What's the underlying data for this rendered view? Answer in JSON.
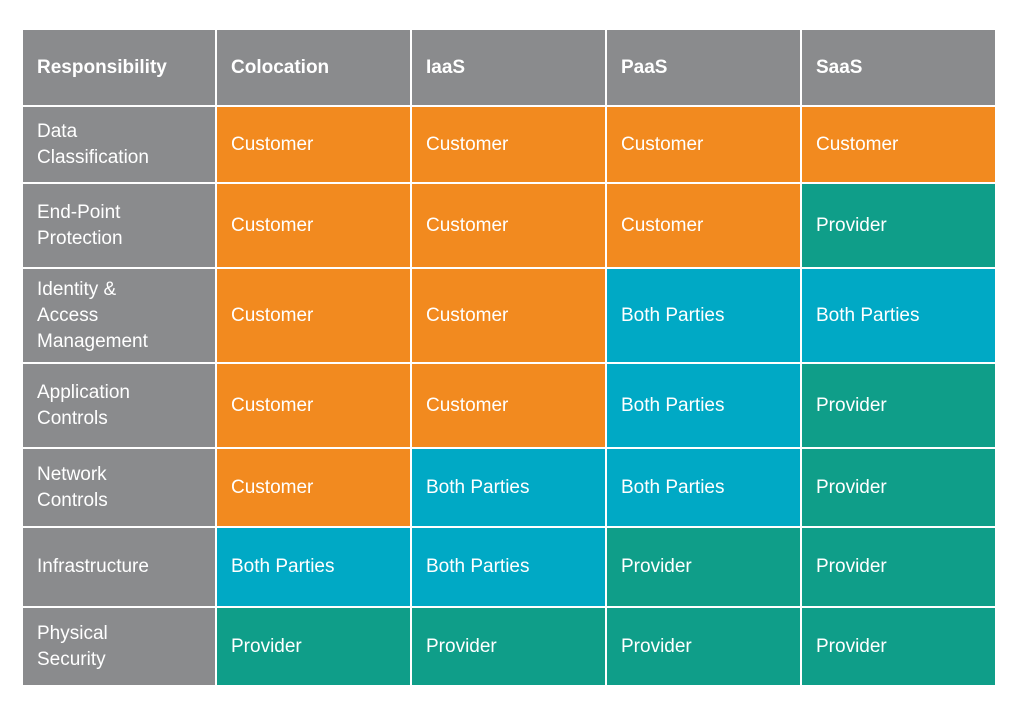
{
  "colors": {
    "header": "#8a8b8d",
    "Customer": "#f28a1f",
    "Provider": "#0f9e89",
    "Both Parties": "#00a9c5"
  },
  "table": {
    "headers": [
      "Responsibility",
      "Colocation",
      "IaaS",
      "PaaS",
      "SaaS"
    ],
    "rows": [
      {
        "label": "Data\nClassification",
        "values": [
          "Customer",
          "Customer",
          "Customer",
          "Customer"
        ]
      },
      {
        "label": "End-Point\nProtection",
        "values": [
          "Customer",
          "Customer",
          "Customer",
          "Provider"
        ]
      },
      {
        "label": "Identity &\nAccess\nManagement",
        "values": [
          "Customer",
          "Customer",
          "Both Parties",
          "Both Parties"
        ]
      },
      {
        "label": "Application\nControls",
        "values": [
          "Customer",
          "Customer",
          "Both Parties",
          "Provider"
        ]
      },
      {
        "label": "Network\nControls",
        "values": [
          "Customer",
          "Both Parties",
          "Both Parties",
          "Provider"
        ]
      },
      {
        "label": "Infrastructure",
        "values": [
          "Both Parties",
          "Both Parties",
          "Provider",
          "Provider"
        ]
      },
      {
        "label": "Physical\nSecurity",
        "values": [
          "Provider",
          "Provider",
          "Provider",
          "Provider"
        ]
      }
    ]
  }
}
